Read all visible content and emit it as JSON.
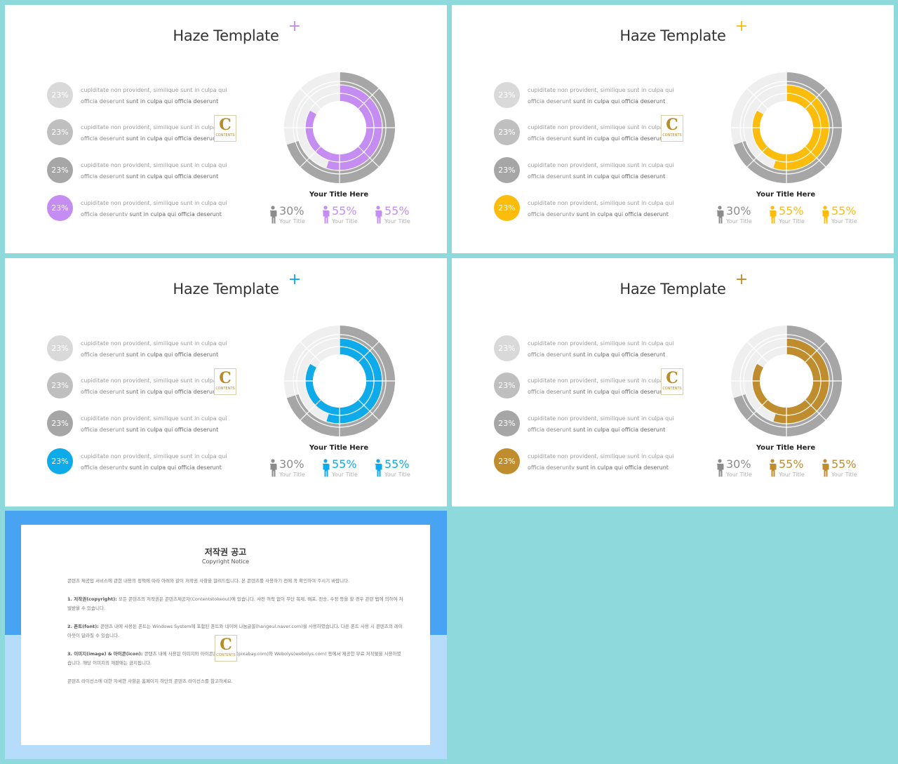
{
  "slides": [
    {
      "accent": "#c58cf2",
      "title": "Haze Template",
      "plus": "+",
      "items": [
        {
          "pct": "23%",
          "line1": "cupiditate non provident, similique sunt in culpa qui",
          "line2a": "officia deserunt ",
          "line2b": "sunt in culpa qui officia deserunt",
          "color": "#d9d9d9"
        },
        {
          "pct": "23%",
          "line1": "cupiditate non provident, similique sunt in culpa qui",
          "line2a": "officia deserunt ",
          "line2b": "sunt in culpa qui officia deserunt",
          "color": "#bfbfbf"
        },
        {
          "pct": "23%",
          "line1": "cupiditate non provident, similique sunt in culpa qui",
          "line2a": "officia deserunt ",
          "line2b": "sunt in culpa qui officia deserunt",
          "color": "#a6a6a6"
        },
        {
          "pct": "23%",
          "line1": "cupiditate non provident, similique sunt in culpa qui",
          "line2a": "officia deseruntv ",
          "line2b": "sunt in culpa qui officia deserunt",
          "color": "accent"
        }
      ],
      "chart_title": "Your Title Here",
      "stats": [
        {
          "pct": "30%",
          "caption": "Your Title",
          "color": "#8c8c8c"
        },
        {
          "pct": "55%",
          "caption": "Your Title",
          "color": "accent"
        },
        {
          "pct": "55%",
          "caption": "Your Title",
          "color": "accent"
        }
      ]
    },
    {
      "accent": "#fbbc0b",
      "title": "Haze Template",
      "plus": "+",
      "items": [
        {
          "pct": "23%",
          "line1": "cupiditate non provident, similique sunt in culpa qui",
          "line2a": "officia deserunt ",
          "line2b": "sunt in culpa qui officia deserunt",
          "color": "#d9d9d9"
        },
        {
          "pct": "23%",
          "line1": "cupiditate non provident, similique sunt in culpa qui",
          "line2a": "officia deserunt ",
          "line2b": "sunt in culpa qui officia deserunt",
          "color": "#bfbfbf"
        },
        {
          "pct": "23%",
          "line1": "cupiditate non provident, similique sunt in culpa qui",
          "line2a": "officia deserunt ",
          "line2b": "sunt in culpa qui officia deserunt",
          "color": "#a6a6a6"
        },
        {
          "pct": "23%",
          "line1": "cupiditate non provident, similique sunt in culpa qui",
          "line2a": "officia deseruntv ",
          "line2b": "sunt in culpa qui officia deserunt",
          "color": "accent"
        }
      ],
      "chart_title": "Your Title Here",
      "stats": [
        {
          "pct": "30%",
          "caption": "Your Title",
          "color": "#8c8c8c"
        },
        {
          "pct": "55%",
          "caption": "Your Title",
          "color": "accent"
        },
        {
          "pct": "55%",
          "caption": "Your Title",
          "color": "accent"
        }
      ]
    },
    {
      "accent": "#0eaaea",
      "title": "Haze Template",
      "plus": "+",
      "items": [
        {
          "pct": "23%",
          "line1": "cupiditate non provident, similique sunt in culpa qui",
          "line2a": "officia deserunt ",
          "line2b": "sunt in culpa qui officia deserunt",
          "color": "#d9d9d9"
        },
        {
          "pct": "23%",
          "line1": "cupiditate non provident, similique sunt in culpa qui",
          "line2a": "officia deserunt ",
          "line2b": "sunt in culpa qui officia deserunt",
          "color": "#bfbfbf"
        },
        {
          "pct": "23%",
          "line1": "cupiditate non provident, similique sunt in culpa qui",
          "line2a": "officia deserunt ",
          "line2b": "sunt in culpa qui officia deserunt",
          "color": "#a6a6a6"
        },
        {
          "pct": "23%",
          "line1": "cupiditate non provident, similique sunt in culpa qui",
          "line2a": "officia deseruntv ",
          "line2b": "sunt in culpa qui officia deserunt",
          "color": "accent"
        }
      ],
      "chart_title": "Your Title Here",
      "stats": [
        {
          "pct": "30%",
          "caption": "Your Title",
          "color": "#8c8c8c"
        },
        {
          "pct": "55%",
          "caption": "Your Title",
          "color": "accent"
        },
        {
          "pct": "55%",
          "caption": "Your Title",
          "color": "accent"
        }
      ]
    },
    {
      "accent": "#c08d2e",
      "title": "Haze Template",
      "plus": "+",
      "items": [
        {
          "pct": "23%",
          "line1": "cupiditate non provident, similique sunt in culpa qui",
          "line2a": "officia deserunt ",
          "line2b": "sunt in culpa qui officia deserunt",
          "color": "#d9d9d9"
        },
        {
          "pct": "23%",
          "line1": "cupiditate non provident, similique sunt in culpa qui",
          "line2a": "officia deserunt ",
          "line2b": "sunt in culpa qui officia deserunt",
          "color": "#bfbfbf"
        },
        {
          "pct": "23%",
          "line1": "cupiditate non provident, similique sunt in culpa qui",
          "line2a": "officia deserunt ",
          "line2b": "sunt in culpa qui officia deserunt",
          "color": "#a6a6a6"
        },
        {
          "pct": "23%",
          "line1": "cupiditate non provident, similique sunt in culpa qui",
          "line2a": "officia deseruntv ",
          "line2b": "sunt in culpa qui officia deserunt",
          "color": "accent"
        }
      ],
      "chart_title": "Your Title Here",
      "stats": [
        {
          "pct": "30%",
          "caption": "Your Title",
          "color": "#8c8c8c"
        },
        {
          "pct": "55%",
          "caption": "Your Title",
          "color": "accent"
        },
        {
          "pct": "55%",
          "caption": "Your Title",
          "color": "accent"
        }
      ]
    }
  ],
  "logo": {
    "letter": "C",
    "text": "CONTENTS"
  },
  "notice": {
    "title": "저작권 공고",
    "subtitle": "Copyright Notice",
    "para0": "콘텐츠 제공업 서비스에 관한 내용의 정책에 따라 아래와 같이 저작권 사항을 알려드립니다. 본 콘텐츠를 사용하기 전에 꼭 확인하여 주시기 바랍니다.",
    "para1_head": "1. 저작권(copyright): ",
    "para1": "모든 콘텐츠의 저작권은 콘텐츠제공자(Contentstokeout)에 있습니다. 사전 허락 없이 무단 복제, 배포, 전송, 수정 등을 할 경우 관련 법에 의하여 처벌받을 수 있습니다.",
    "para2_head": "2. 폰트(font): ",
    "para2": "콘텐츠 내에 사용된 폰트는 Windows System에 포함된 폰트와 네이버 나눔글꼴(hangeul.naver.com)을 사용하였습니다. 다른 폰트 사용 시 콘텐츠의 레이아웃이 달라질 수 있습니다.",
    "para3_head": "3. 이미지(image) & 아이콘(icon): ",
    "para3": "콘텐츠 내에 사용된 이미지와 아이콘은 Pixabay(pixabay.com)와 Webolys(webolys.com) 등에서 제공한 무료 저작물을 사용하였습니다. 해당 이미지의 재판매는 금지됩니다.",
    "para4": "콘텐츠 라이선스에 대한 자세한 사항은 홈페이지 하단의 콘텐츠 라이선스를 참고하세요."
  },
  "chart_data": {
    "type": "pie",
    "title": "Your Title Here",
    "rings": [
      {
        "name": "outer",
        "values": [
          30,
          70
        ]
      },
      {
        "name": "middle",
        "values": [
          55,
          45
        ]
      },
      {
        "name": "inner",
        "values": [
          55,
          45
        ]
      }
    ],
    "stats": [
      30,
      55,
      55
    ]
  }
}
